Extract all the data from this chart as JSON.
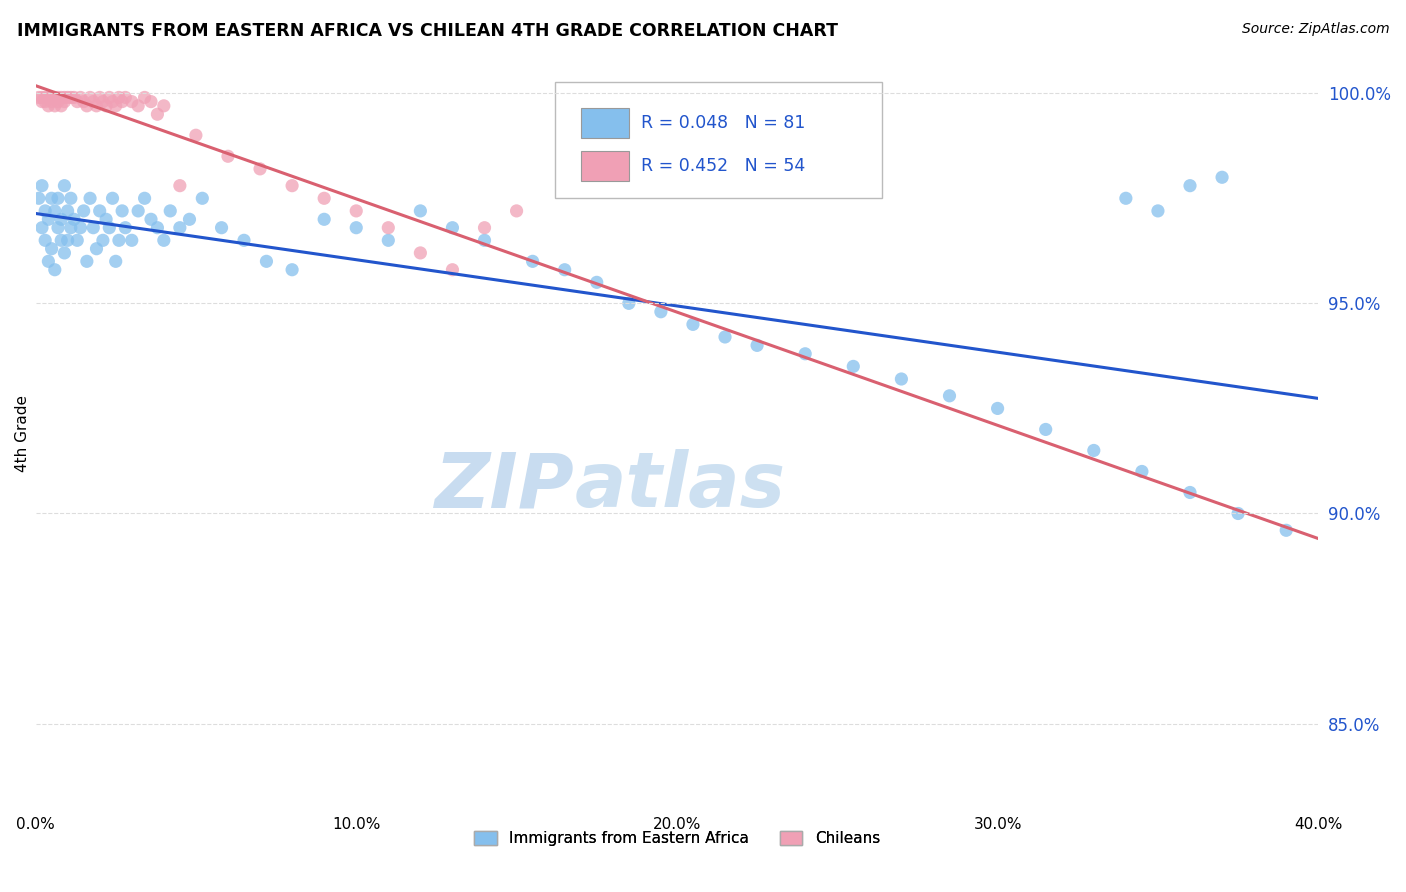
{
  "title": "IMMIGRANTS FROM EASTERN AFRICA VS CHILEAN 4TH GRADE CORRELATION CHART",
  "source": "Source: ZipAtlas.com",
  "ylabel": "4th Grade",
  "ytick_labels": [
    "85.0%",
    "90.0%",
    "95.0%",
    "100.0%"
  ],
  "ytick_values": [
    0.85,
    0.9,
    0.95,
    1.0
  ],
  "xlim": [
    0.0,
    0.4
  ],
  "ylim": [
    0.83,
    1.008
  ],
  "legend_blue_label": "Immigrants from Eastern Africa",
  "legend_pink_label": "Chileans",
  "r_blue": "0.048",
  "n_blue": "81",
  "r_pink": "0.452",
  "n_pink": "54",
  "blue_color": "#85BFED",
  "pink_color": "#F0A0B5",
  "blue_line_color": "#2255CC",
  "pink_line_color": "#D96070",
  "blue_scatter_x": [
    0.001,
    0.002,
    0.002,
    0.003,
    0.003,
    0.004,
    0.004,
    0.005,
    0.005,
    0.006,
    0.006,
    0.007,
    0.007,
    0.008,
    0.008,
    0.009,
    0.009,
    0.01,
    0.01,
    0.011,
    0.011,
    0.012,
    0.013,
    0.014,
    0.015,
    0.016,
    0.017,
    0.018,
    0.019,
    0.02,
    0.021,
    0.022,
    0.023,
    0.024,
    0.025,
    0.026,
    0.027,
    0.028,
    0.03,
    0.032,
    0.034,
    0.036,
    0.038,
    0.04,
    0.042,
    0.045,
    0.048,
    0.052,
    0.058,
    0.065,
    0.072,
    0.08,
    0.09,
    0.1,
    0.11,
    0.12,
    0.13,
    0.14,
    0.155,
    0.165,
    0.175,
    0.185,
    0.195,
    0.205,
    0.215,
    0.225,
    0.24,
    0.255,
    0.27,
    0.285,
    0.3,
    0.315,
    0.33,
    0.345,
    0.36,
    0.375,
    0.39,
    0.34,
    0.35,
    0.36,
    0.37
  ],
  "blue_scatter_y": [
    0.975,
    0.978,
    0.968,
    0.972,
    0.965,
    0.97,
    0.96,
    0.975,
    0.963,
    0.972,
    0.958,
    0.968,
    0.975,
    0.965,
    0.97,
    0.962,
    0.978,
    0.965,
    0.972,
    0.968,
    0.975,
    0.97,
    0.965,
    0.968,
    0.972,
    0.96,
    0.975,
    0.968,
    0.963,
    0.972,
    0.965,
    0.97,
    0.968,
    0.975,
    0.96,
    0.965,
    0.972,
    0.968,
    0.965,
    0.972,
    0.975,
    0.97,
    0.968,
    0.965,
    0.972,
    0.968,
    0.97,
    0.975,
    0.968,
    0.965,
    0.96,
    0.958,
    0.97,
    0.968,
    0.965,
    0.972,
    0.968,
    0.965,
    0.96,
    0.958,
    0.955,
    0.95,
    0.948,
    0.945,
    0.942,
    0.94,
    0.938,
    0.935,
    0.932,
    0.928,
    0.925,
    0.92,
    0.915,
    0.91,
    0.905,
    0.9,
    0.896,
    0.975,
    0.972,
    0.978,
    0.98
  ],
  "pink_scatter_x": [
    0.001,
    0.002,
    0.002,
    0.003,
    0.003,
    0.004,
    0.004,
    0.005,
    0.005,
    0.006,
    0.006,
    0.007,
    0.007,
    0.008,
    0.008,
    0.009,
    0.009,
    0.01,
    0.011,
    0.012,
    0.013,
    0.014,
    0.015,
    0.016,
    0.017,
    0.018,
    0.019,
    0.02,
    0.021,
    0.022,
    0.023,
    0.024,
    0.025,
    0.026,
    0.027,
    0.028,
    0.03,
    0.032,
    0.034,
    0.036,
    0.038,
    0.04,
    0.045,
    0.05,
    0.06,
    0.07,
    0.08,
    0.09,
    0.1,
    0.11,
    0.12,
    0.13,
    0.14,
    0.15
  ],
  "pink_scatter_y": [
    0.999,
    0.999,
    0.998,
    0.999,
    0.998,
    0.999,
    0.997,
    0.999,
    0.998,
    0.999,
    0.997,
    0.999,
    0.998,
    0.999,
    0.997,
    0.999,
    0.998,
    0.999,
    0.999,
    0.999,
    0.998,
    0.999,
    0.998,
    0.997,
    0.999,
    0.998,
    0.997,
    0.999,
    0.998,
    0.997,
    0.999,
    0.998,
    0.997,
    0.999,
    0.998,
    0.999,
    0.998,
    0.997,
    0.999,
    0.998,
    0.995,
    0.997,
    0.978,
    0.99,
    0.985,
    0.982,
    0.978,
    0.975,
    0.972,
    0.968,
    0.962,
    0.958,
    0.968,
    0.972
  ],
  "watermark_color": "#C8DCF0",
  "background_color": "#FFFFFF",
  "grid_color": "#DDDDDD"
}
